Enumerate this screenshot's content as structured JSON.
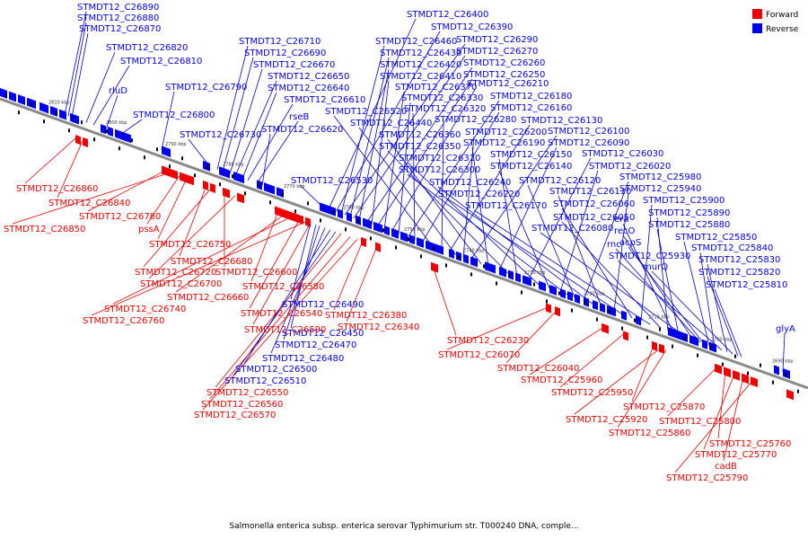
{
  "caption": "Salmonella enterica subsp. enterica serovar Typhimurium str. T000240 DNA, comple...",
  "legend": [
    {
      "name": "Forward",
      "color": "#ee0000"
    },
    {
      "name": "Reverse",
      "color": "#0000ee"
    }
  ],
  "colors": {
    "forward": "#ee0000",
    "reverse": "#0000ee",
    "forward_line": "#ee0000",
    "reverse_line": "#0000cc",
    "backbone": "#808080"
  },
  "ticks": [
    "2810 kbp",
    "2800 kbp",
    "2790 kbp",
    "2780 kbp",
    "2770 kbp",
    "2760 kbp",
    "2750 kbp",
    "2740 kbp",
    "2730 kbp",
    "2720 kbp",
    "2710 kbp",
    "2700 kbp",
    "2690 kbp"
  ],
  "reverse_labels": [
    "STMDT12_C26890",
    "STMDT12_C26880",
    "STMDT12_C26870",
    "STMDT12_C26820",
    "STMDT12_C26810",
    "rluD",
    "STMDT12_C26800",
    "STMDT12_C26790",
    "STMDT12_C26730",
    "STMDT12_C26710",
    "STMDT12_C26690",
    "STMDT12_C26670",
    "STMDT12_C26650",
    "STMDT12_C26640",
    "STMDT12_C26610",
    "rseB",
    "STMDT12_C26620",
    "STMDT12_C26530",
    "STMDT12_C26400",
    "STMDT12_C26390",
    "STMDT12_C26460",
    "STMDT12_C26290",
    "STMDT12_C26430",
    "STMDT12_C26270",
    "STMDT12_C26420",
    "STMDT12_C26260",
    "STMDT12_C26410",
    "STMDT12_C26250",
    "STMDT12_C26370",
    "STMDT12_C26210",
    "STMDT12_C26330",
    "STMDT12_C26180",
    "STMDT12_C26320",
    "STMDT12_C26160",
    "STMDT12_C26520",
    "STMDT12_C26280",
    "STMDT12_C26130",
    "STMDT12_C26440",
    "STMDT12_C26200",
    "STMDT12_C26100",
    "STMDT12_C26360",
    "STMDT12_C26190",
    "STMDT12_C26090",
    "STMDT12_C26350",
    "STMDT12_C26150",
    "STMDT12_C26030",
    "STMDT12_C26310",
    "STMDT12_C26140",
    "STMDT12_C26020",
    "STMDT12_C26300",
    "STMDT12_C26120",
    "STMDT12_C25980",
    "STMDT12_C26240",
    "STMDT12_C26110",
    "STMDT12_C25940",
    "STMDT12_C26220",
    "STMDT12_C26060",
    "STMDT12_C25900",
    "STMDT12_C26170",
    "STMDT12_C26050",
    "STMDT12_C25890",
    "era",
    "STMDT12_C25880",
    "STMDT12_C26080",
    "recO",
    "rnc",
    "acpS",
    "STMDT12_C25850",
    "STMDT12_C25840",
    "STMDT12_C25930",
    "STMDT12_C25830",
    "murQ",
    "STMDT12_C25820",
    "STMDT12_C25810",
    "glyA",
    "STMDT12_C26490",
    "STMDT12_C26450",
    "STMDT12_C26470",
    "STMDT12_C26480",
    "STMDT12_C26500",
    "STMDT12_C26510"
  ],
  "forward_labels": [
    "STMDT12_C26860",
    "STMDT12_C26840",
    "STMDT12_C26780",
    "STMDT12_C26850",
    "pssA",
    "STMDT12_C26750",
    "STMDT12_C26680",
    "STMDT12_C26720",
    "STMDT12_C26600",
    "STMDT12_C26700",
    "STMDT12_C26580",
    "STMDT12_C26660",
    "STMDT12_C26740",
    "STMDT12_C26540",
    "STMDT12_C26760",
    "STMDT12_C26590",
    "STMDT12_C26380",
    "STMDT12_C26340",
    "STMDT12_C26230",
    "STMDT12_C26070",
    "STMDT12_C26040",
    "STMDT12_C25960",
    "STMDT12_C25950",
    "STMDT12_C25870",
    "STMDT12_C25920",
    "STMDT12_C25860",
    "STMDT12_C25800",
    "STMDT12_C25760",
    "STMDT12_C25770",
    "cadB",
    "STMDT12_C25790",
    "STMDT12_C26550",
    "STMDT12_C26560",
    "STMDT12_C26570"
  ]
}
